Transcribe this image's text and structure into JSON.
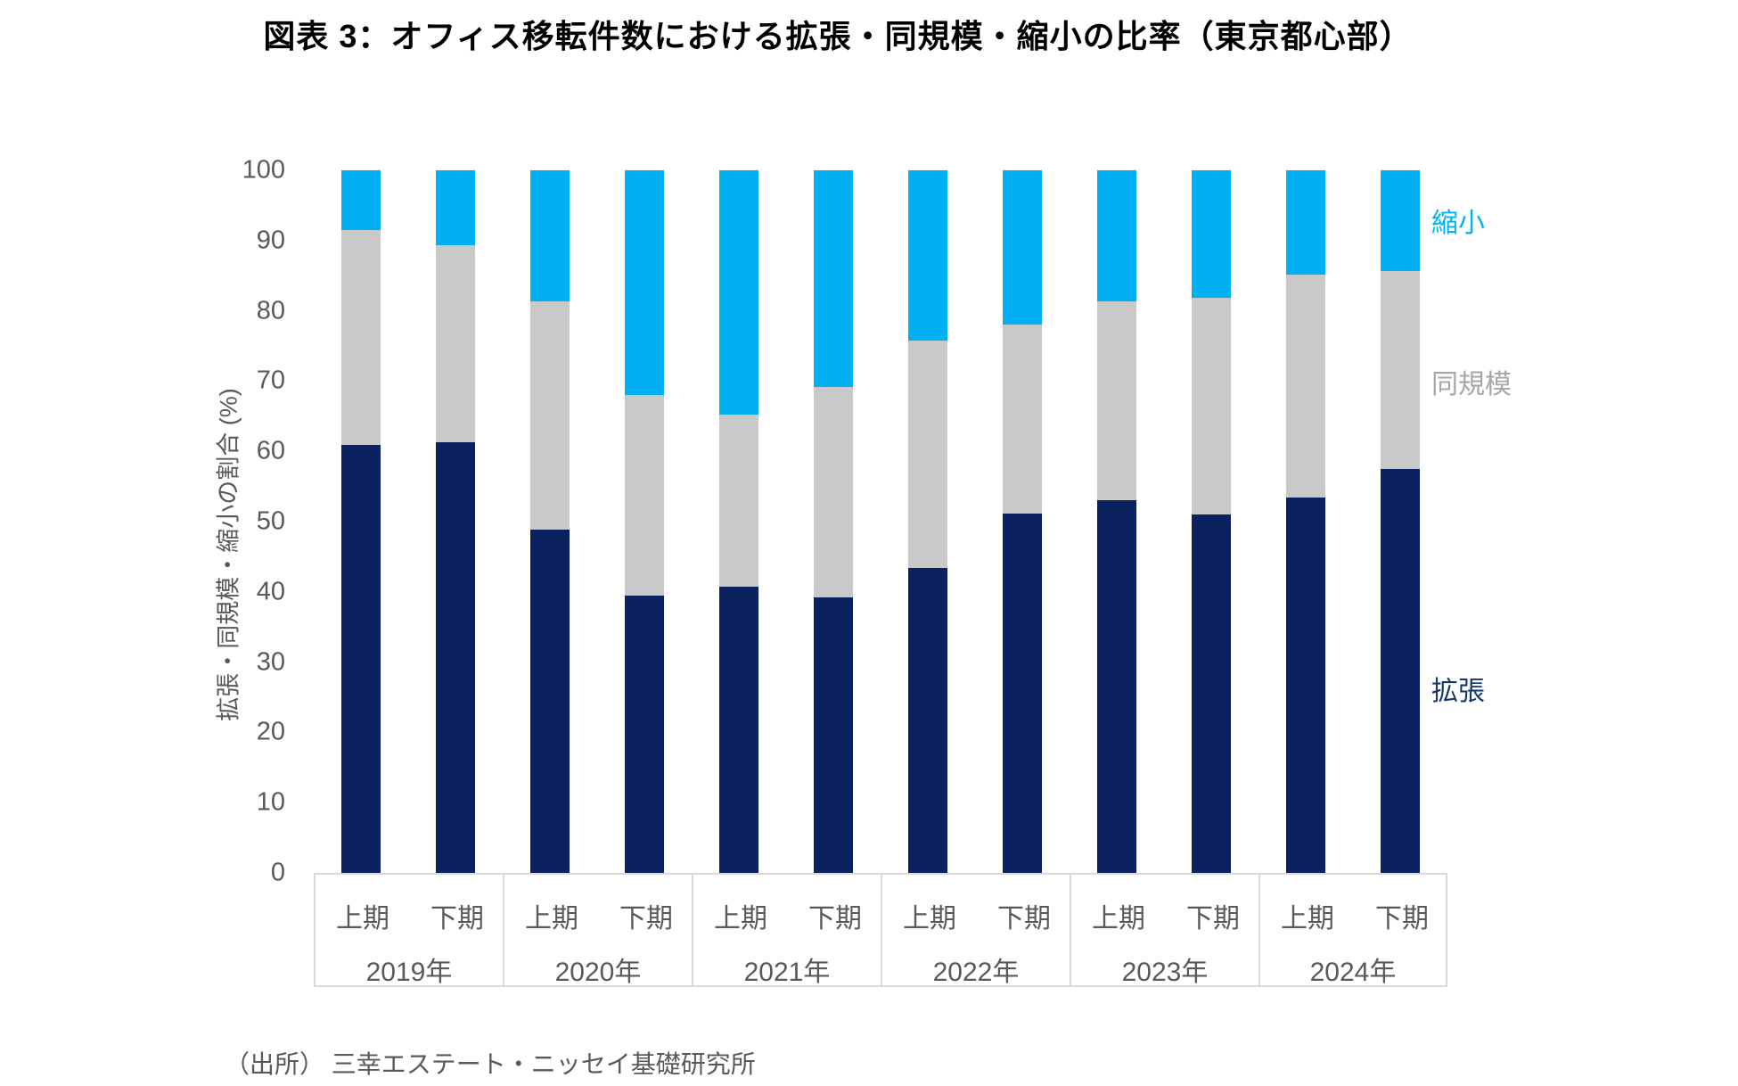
{
  "title": "図表 3：オフィス移転件数における拡張・同規模・縮小の比率（東京都心部）",
  "source": "（出所） 三幸エステート・ニッセイ基礎研究所",
  "chart_data": {
    "type": "bar",
    "stacked": true,
    "percent_stacked": true,
    "title": "図表 3：オフィス移転件数における拡張・同規模・縮小の比率（東京都心部）",
    "ylabel": "拡張・同規模・縮小の割合 (%)",
    "xlabel": "",
    "ylim": [
      0,
      100
    ],
    "ytick_step": 10,
    "yticks": [
      0,
      10,
      20,
      30,
      40,
      50,
      60,
      70,
      80,
      90,
      100
    ],
    "grid": false,
    "legend_position": "right",
    "groups": [
      "2019年",
      "2020年",
      "2021年",
      "2022年",
      "2023年",
      "2024年"
    ],
    "period_labels": [
      "上期",
      "下期"
    ],
    "categories": [
      "2019年上期",
      "2019年下期",
      "2020年上期",
      "2020年下期",
      "2021年上期",
      "2021年下期",
      "2022年上期",
      "2022年下期",
      "2023年上期",
      "2023年下期",
      "2024年上期",
      "2024年下期"
    ],
    "series": [
      {
        "name": "拡張",
        "color": "#0b2160",
        "values": [
          60.9,
          61.3,
          48.8,
          39.5,
          40.7,
          39.2,
          43.4,
          51.1,
          53.1,
          51.0,
          53.4,
          57.5
        ]
      },
      {
        "name": "同規模",
        "color": "#c9c9c9",
        "values": [
          30.6,
          28.1,
          32.5,
          28.5,
          24.5,
          30.0,
          32.4,
          26.9,
          28.3,
          30.8,
          31.8,
          28.2
        ]
      },
      {
        "name": "縮小",
        "color": "#00b0f0",
        "values": [
          8.5,
          10.6,
          18.7,
          32.0,
          34.8,
          30.8,
          24.2,
          22.0,
          18.6,
          18.2,
          14.8,
          14.3
        ]
      }
    ],
    "legend_text_colors": {
      "拡張": "#16356b",
      "同規模": "#a6a6a6",
      "縮小": "#00b0f0"
    }
  }
}
